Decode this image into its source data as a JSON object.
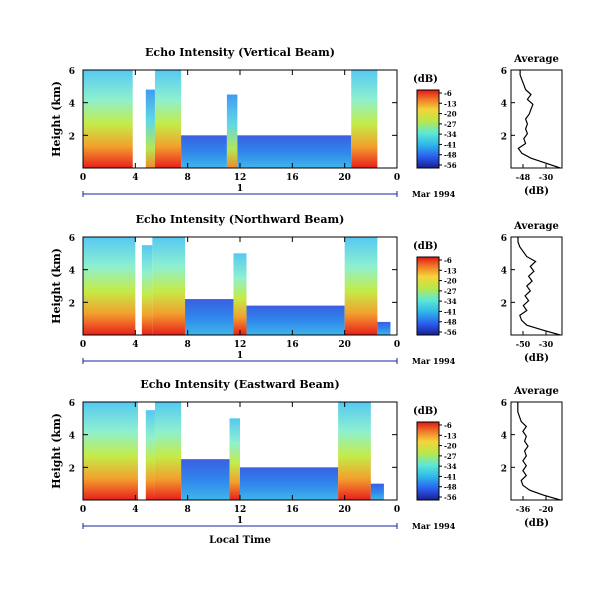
{
  "chart_data": [
    {
      "type": "heatmap",
      "title": "Echo Intensity (Vertical Beam)",
      "ylabel": "Height (km)",
      "ylim": [
        0,
        6
      ],
      "yticks": [
        "6",
        "4",
        "2"
      ],
      "xlim": [
        0,
        24
      ],
      "xticks": [
        "0",
        "4",
        "8",
        "12",
        "16",
        "20",
        "0"
      ],
      "date_axis": {
        "day_label": "1",
        "date_label": "Mar 1994"
      },
      "colorbar": {
        "unit": "(dB)",
        "ticks": [
          "-6",
          "-13",
          "-20",
          "-27",
          "-34",
          "-41",
          "-48",
          "-56"
        ]
      },
      "echo_regions": [
        {
          "start": 0.0,
          "end": 3.8,
          "top": 6.0
        },
        {
          "start": 4.8,
          "end": 5.5,
          "top": 4.8
        },
        {
          "start": 5.5,
          "end": 7.5,
          "top": 6.0
        },
        {
          "start": 7.5,
          "end": 11.0,
          "top": 2.0
        },
        {
          "start": 11.0,
          "end": 11.8,
          "top": 4.5
        },
        {
          "start": 11.8,
          "end": 20.5,
          "top": 2.0
        },
        {
          "start": 20.5,
          "end": 22.5,
          "top": 6.0
        }
      ],
      "average_profile": {
        "title": "Average",
        "xlabel": "(dB)",
        "xticks": [
          "-48",
          "-30"
        ],
        "yticks": [
          "6",
          "4",
          "2"
        ],
        "height": [
          0.0,
          0.3,
          0.6,
          0.9,
          1.2,
          1.5,
          1.8,
          2.1,
          2.4,
          2.7,
          3.0,
          3.3,
          3.6,
          3.9,
          4.2,
          4.5,
          4.8,
          5.1,
          5.4,
          5.7,
          6.0
        ],
        "value": [
          -28,
          -36,
          -44,
          -49,
          -51,
          -47,
          -48,
          -46,
          -47,
          -46,
          -47,
          -45,
          -44,
          -43,
          -46,
          -44,
          -47,
          -48,
          -49,
          -50,
          -50
        ]
      }
    },
    {
      "type": "heatmap",
      "title": "Echo Intensity (Northward Beam)",
      "ylabel": "Height (km)",
      "ylim": [
        0,
        6
      ],
      "yticks": [
        "6",
        "4",
        "2"
      ],
      "xlim": [
        0,
        24
      ],
      "xticks": [
        "0",
        "4",
        "8",
        "12",
        "16",
        "20",
        "0"
      ],
      "date_axis": {
        "day_label": "1",
        "date_label": "Mar 1994"
      },
      "colorbar": {
        "unit": "(dB)",
        "ticks": [
          "-6",
          "-13",
          "-20",
          "-27",
          "-34",
          "-41",
          "-48",
          "-56"
        ]
      },
      "echo_regions": [
        {
          "start": 0.0,
          "end": 4.0,
          "top": 6.0
        },
        {
          "start": 4.5,
          "end": 5.3,
          "top": 5.5
        },
        {
          "start": 5.3,
          "end": 7.8,
          "top": 6.0
        },
        {
          "start": 7.8,
          "end": 11.5,
          "top": 2.2
        },
        {
          "start": 11.5,
          "end": 12.5,
          "top": 5.0
        },
        {
          "start": 12.5,
          "end": 20.0,
          "top": 1.8
        },
        {
          "start": 20.0,
          "end": 22.5,
          "top": 6.0
        },
        {
          "start": 22.5,
          "end": 23.5,
          "top": 0.8
        }
      ],
      "average_profile": {
        "title": "Average",
        "xlabel": "(dB)",
        "xticks": [
          "-50",
          "-30"
        ],
        "yticks": [
          "6",
          "4",
          "2"
        ],
        "height": [
          0.0,
          0.3,
          0.6,
          0.9,
          1.2,
          1.5,
          1.8,
          2.1,
          2.4,
          2.7,
          3.0,
          3.3,
          3.6,
          3.9,
          4.2,
          4.5,
          4.8,
          5.1,
          5.4,
          5.7,
          6.0
        ],
        "value": [
          -30,
          -40,
          -49,
          -52,
          -53,
          -49,
          -51,
          -48,
          -50,
          -47,
          -49,
          -46,
          -48,
          -45,
          -47,
          -44,
          -49,
          -51,
          -53,
          -54,
          -54
        ]
      }
    },
    {
      "type": "heatmap",
      "title": "Echo Intensity (Eastward Beam)",
      "ylabel": "Height (km)",
      "ylim": [
        0,
        6
      ],
      "yticks": [
        "6",
        "4",
        "2"
      ],
      "xlim": [
        0,
        24
      ],
      "xticks": [
        "0",
        "4",
        "8",
        "12",
        "16",
        "20",
        "0"
      ],
      "xlabel": "Local Time",
      "date_axis": {
        "day_label": "1",
        "date_label": "Mar 1994"
      },
      "colorbar": {
        "unit": "(dB)",
        "ticks": [
          "-6",
          "-13",
          "-20",
          "-27",
          "-34",
          "-41",
          "-48",
          "-56"
        ]
      },
      "echo_regions": [
        {
          "start": 0.0,
          "end": 4.2,
          "top": 6.0
        },
        {
          "start": 4.8,
          "end": 5.5,
          "top": 5.5
        },
        {
          "start": 5.5,
          "end": 7.5,
          "top": 6.0
        },
        {
          "start": 7.5,
          "end": 11.2,
          "top": 2.5
        },
        {
          "start": 11.2,
          "end": 12.0,
          "top": 5.0
        },
        {
          "start": 12.0,
          "end": 19.5,
          "top": 2.0
        },
        {
          "start": 19.5,
          "end": 22.0,
          "top": 6.0
        },
        {
          "start": 22.0,
          "end": 23.0,
          "top": 1.0
        }
      ],
      "average_profile": {
        "title": "Average",
        "xlabel": "(dB)",
        "xticks": [
          "-36",
          "-20"
        ],
        "yticks": [
          "6",
          "4",
          "2"
        ],
        "height": [
          0.0,
          0.3,
          0.6,
          0.9,
          1.2,
          1.5,
          1.8,
          2.1,
          2.4,
          2.7,
          3.0,
          3.3,
          3.6,
          3.9,
          4.2,
          4.5,
          4.8,
          5.1,
          5.4,
          5.7,
          6.0
        ],
        "value": [
          -20,
          -30,
          -38,
          -42,
          -43,
          -40,
          -42,
          -40,
          -42,
          -40,
          -41,
          -39,
          -41,
          -40,
          -42,
          -40,
          -43,
          -44,
          -45,
          -45,
          -45
        ]
      }
    }
  ]
}
